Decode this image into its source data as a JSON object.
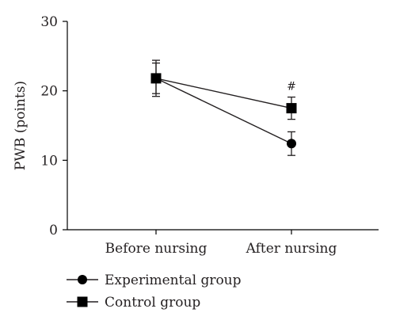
{
  "chart_data": {
    "type": "line",
    "categories": [
      "Before nursing",
      "After nursing"
    ],
    "ylabel": "PWB (points)",
    "xlabel": "",
    "ylim": [
      0,
      30
    ],
    "yticks": [
      0,
      10,
      20,
      30
    ],
    "grid": false,
    "legend_position": "bottom-left",
    "series": [
      {
        "name": "Experimental group",
        "marker": "circle",
        "values": [
          21.8,
          12.4
        ],
        "error": [
          2.6,
          1.7
        ]
      },
      {
        "name": "Control group",
        "marker": "square",
        "values": [
          21.8,
          17.5
        ],
        "error": [
          2.2,
          1.6
        ]
      }
    ],
    "annotations": [
      {
        "category": "After nursing",
        "text": "#"
      }
    ]
  }
}
